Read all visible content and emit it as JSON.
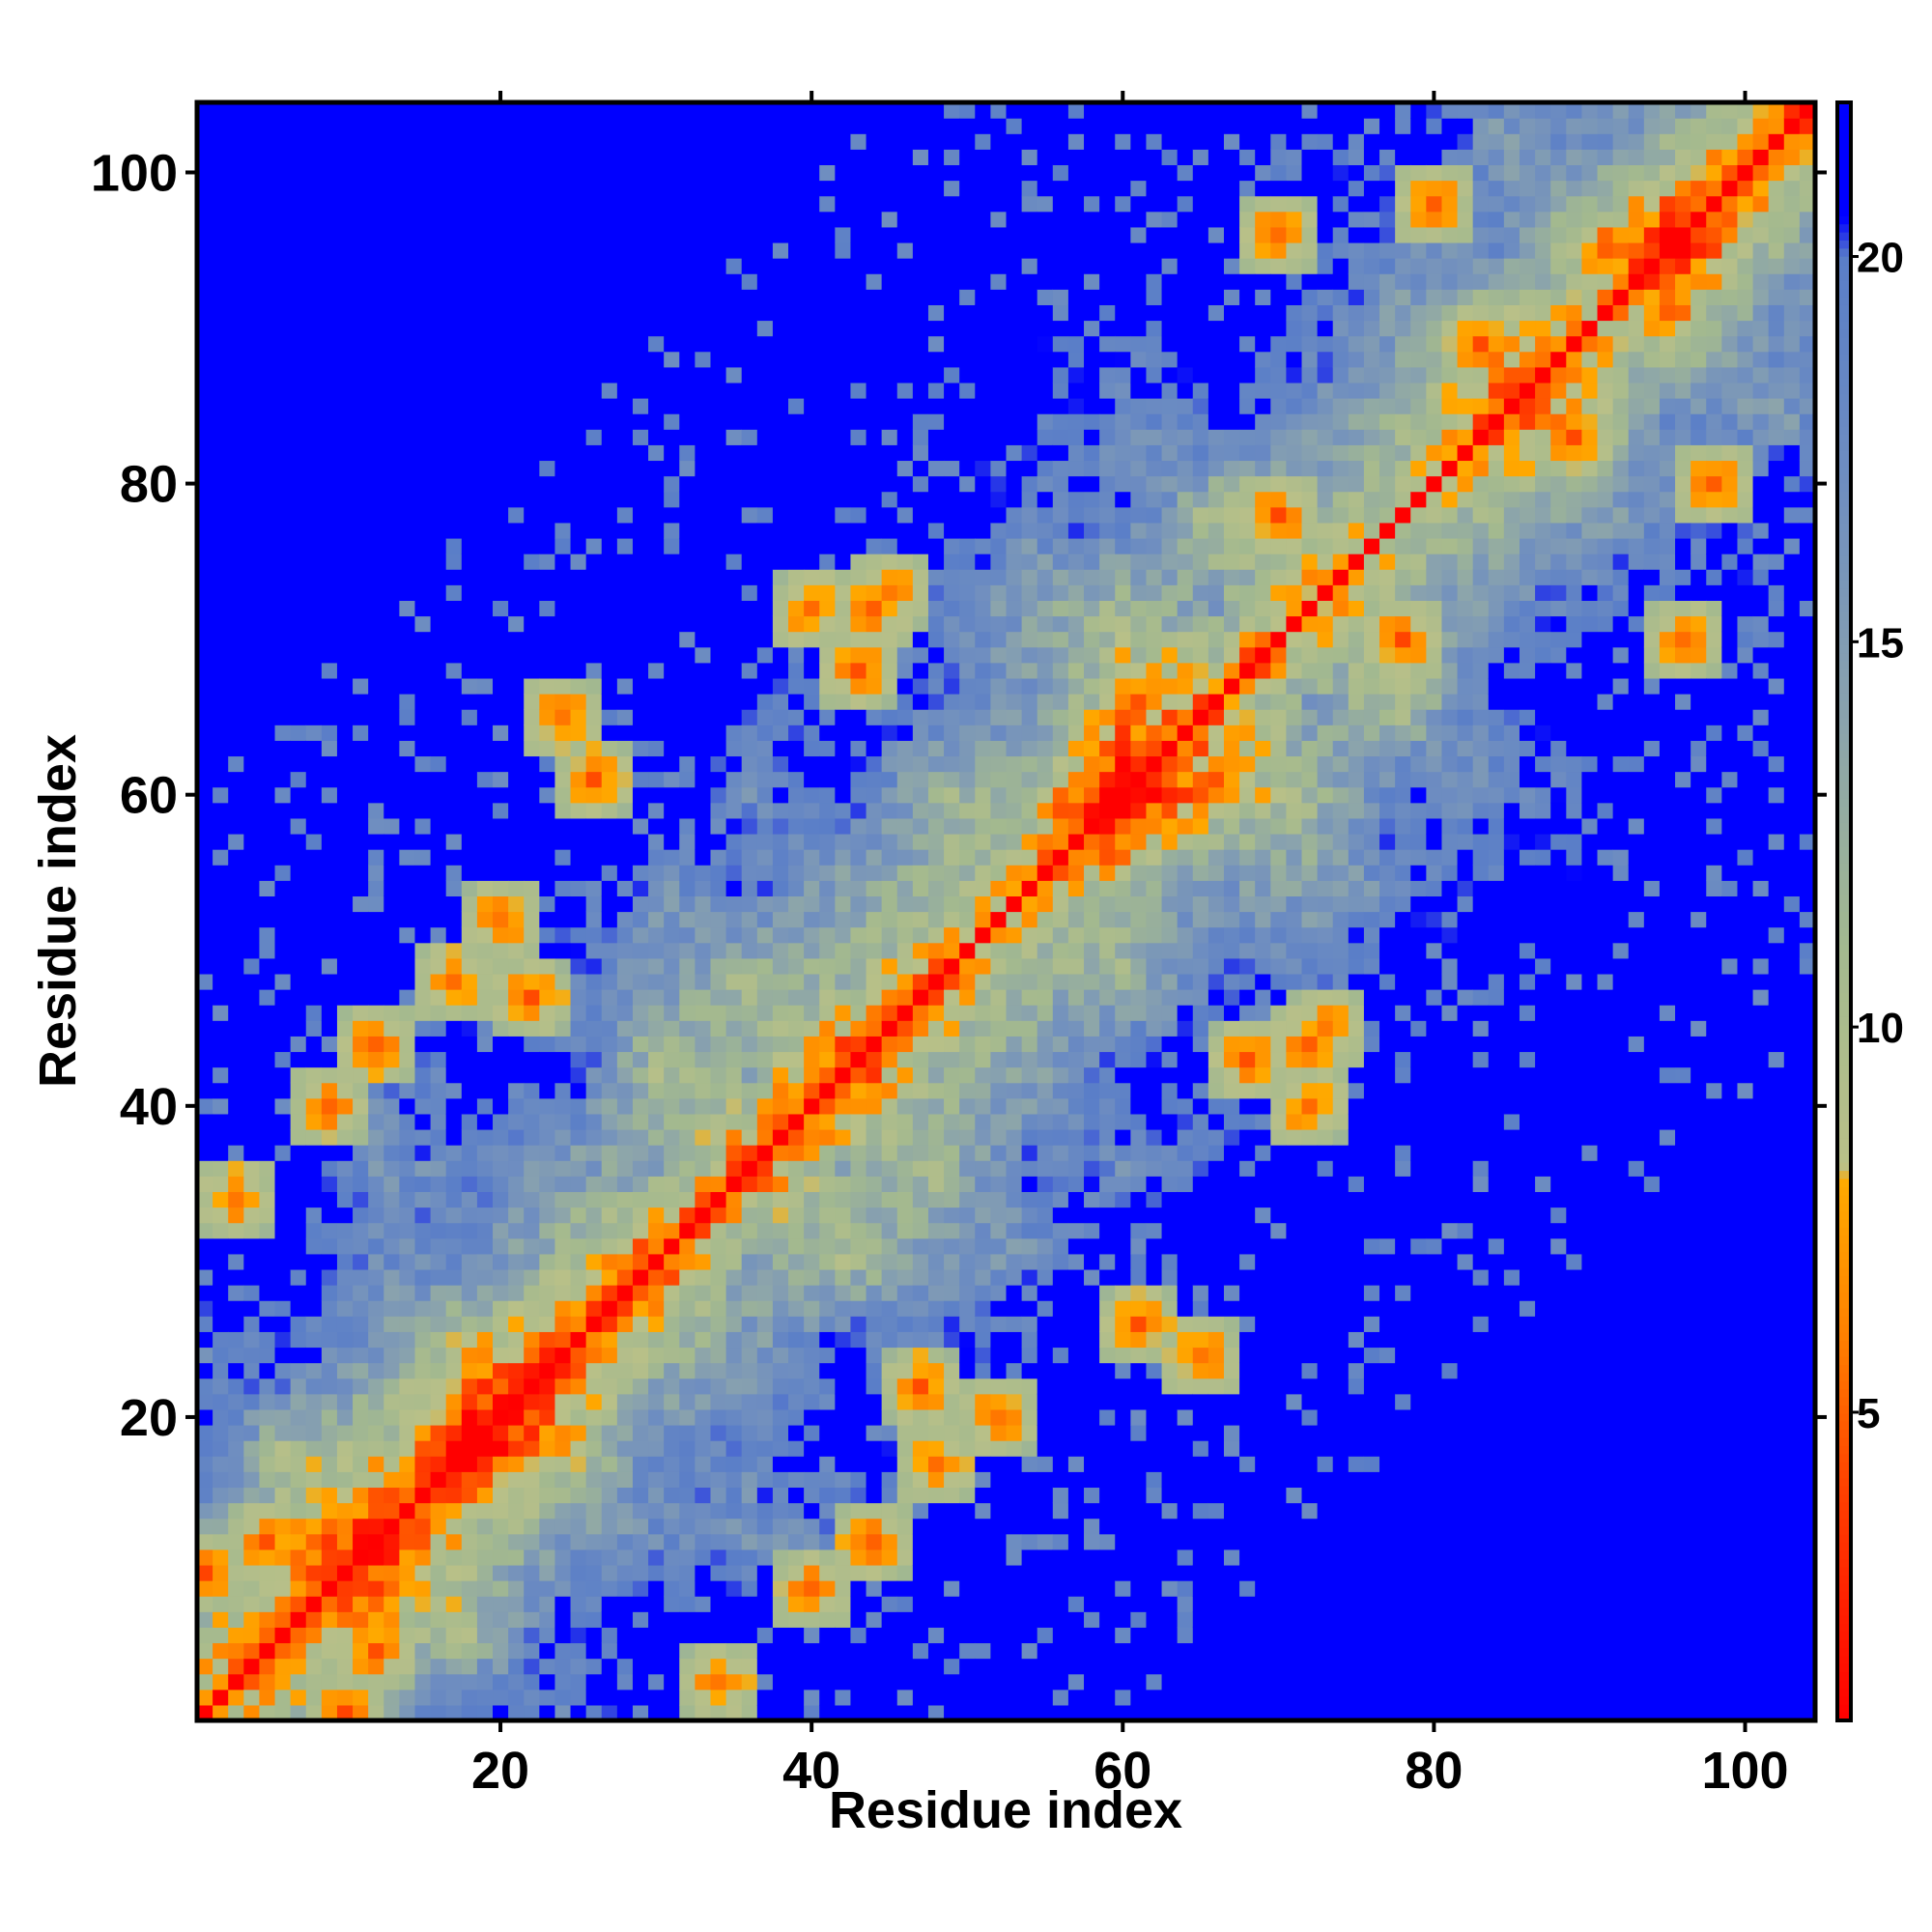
{
  "chart_data": {
    "type": "heatmap",
    "title": "",
    "xlabel": "Residue index",
    "ylabel": "Residue index",
    "n_residues": 104,
    "x_range": [
      0.5,
      104.5
    ],
    "y_range": [
      0.5,
      104.5
    ],
    "x_ticks": [
      20,
      40,
      60,
      80,
      100
    ],
    "y_ticks": [
      20,
      40,
      60,
      80,
      100
    ],
    "colorbar": {
      "ticks": [
        5,
        10,
        15,
        20
      ],
      "range": [
        1,
        22
      ],
      "stops": [
        {
          "value": 1,
          "color": "#ff0000"
        },
        {
          "value": 4,
          "color": "#ff4000"
        },
        {
          "value": 6,
          "color": "#ff8000"
        },
        {
          "value": 8,
          "color": "#ffaa00"
        },
        {
          "value": 8.2,
          "color": "#b9c088"
        },
        {
          "value": 11,
          "color": "#a3b98f"
        },
        {
          "value": 14,
          "color": "#8aa3ad"
        },
        {
          "value": 17,
          "color": "#6f8ec0"
        },
        {
          "value": 20,
          "color": "#5a7ec8"
        },
        {
          "value": 20.5,
          "color": "#0000ff"
        },
        {
          "value": 22,
          "color": "#0000ff"
        }
      ]
    },
    "description_of_matrix": "Symmetric residue-residue distance map; values near 1 on the diagonal, increasing with separation, saturating above 20 (blue) in far off-diagonal corners."
  }
}
